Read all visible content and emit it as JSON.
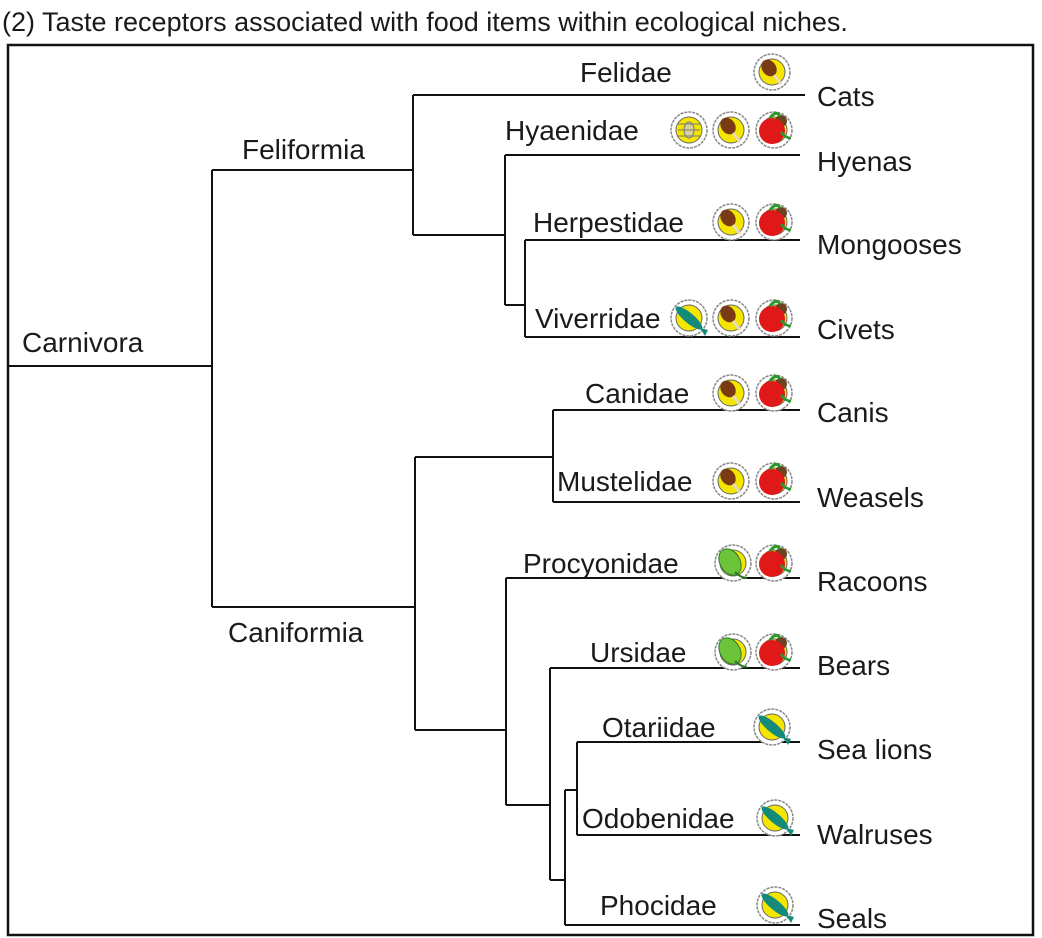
{
  "title": "(2) Taste receptors associated with food items within ecological niches.",
  "root": "Carnivora",
  "suborders": [
    "Feliformia",
    "Caniformia"
  ],
  "families": [
    {
      "family": "Felidae",
      "common": "Cats",
      "icons": [
        "meat-icon"
      ]
    },
    {
      "family": "Hyaenidae",
      "common": "Hyenas",
      "icons": [
        "insect-icon",
        "meat-icon",
        "fruit-icon"
      ]
    },
    {
      "family": "Herpestidae",
      "common": "Mongooses",
      "icons": [
        "meat-icon",
        "fruit-icon"
      ]
    },
    {
      "family": "Viverridae",
      "common": "Civets",
      "icons": [
        "fish-icon",
        "meat-icon",
        "fruit-icon"
      ]
    },
    {
      "family": "Canidae",
      "common": "Canis",
      "icons": [
        "meat-icon",
        "fruit-icon"
      ]
    },
    {
      "family": "Mustelidae",
      "common": "Weasels",
      "icons": [
        "meat-icon",
        "fruit-icon"
      ]
    },
    {
      "family": "Procyonidae",
      "common": "Racoons",
      "icons": [
        "leaf-icon",
        "fruit-icon"
      ]
    },
    {
      "family": "Ursidae",
      "common": "Bears",
      "icons": [
        "leaf-icon",
        "fruit-icon"
      ]
    },
    {
      "family": "Otariidae",
      "common": "Sea lions",
      "icons": [
        "fish-icon"
      ]
    },
    {
      "family": "Odobenidae",
      "common": "Walruses",
      "icons": [
        "fish-icon"
      ]
    },
    {
      "family": "Phocidae",
      "common": "Seals",
      "icons": [
        "fish-icon"
      ]
    }
  ]
}
